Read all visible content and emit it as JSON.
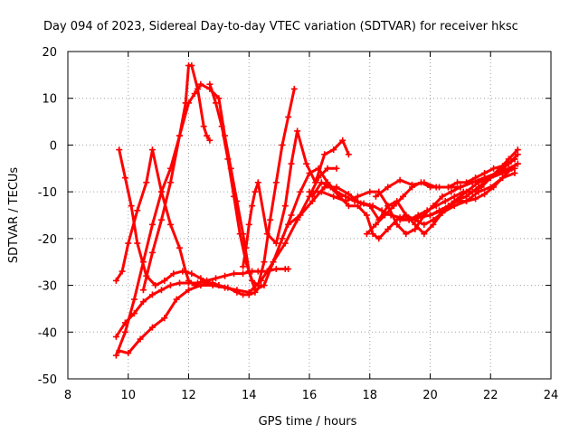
{
  "chart_data": {
    "type": "scatter",
    "title": "Day 094 of 2023, Sidereal Day-to-day VTEC variation (SDTVAR) for receiver hksc",
    "xlabel": "GPS time / hours",
    "ylabel": "SDTVAR / TECUs",
    "xlim": [
      8,
      24
    ],
    "ylim": [
      -50,
      20
    ],
    "xticks": [
      8,
      10,
      12,
      14,
      16,
      18,
      20,
      22,
      24
    ],
    "yticks": [
      -50,
      -40,
      -30,
      -20,
      -10,
      0,
      10,
      20
    ],
    "grid": true,
    "legend": "none",
    "marker": "plus",
    "color": "#ff0000",
    "series": [
      {
        "x": [
          9.6,
          9.8,
          10.0,
          10.3,
          10.6,
          10.8,
          11.1,
          11.4,
          11.7,
          11.9,
          12.0,
          12.2,
          12.4,
          12.6,
          12.8,
          13.0
        ],
        "y": [
          -29,
          -27,
          -21,
          -14,
          -8,
          -1,
          -10,
          -17,
          -22,
          -27,
          -29,
          -30,
          -30,
          -29.5,
          -29.5,
          -30
        ]
      },
      {
        "x": [
          9.6,
          9.9,
          10.2,
          10.5,
          10.8,
          11.1,
          11.4,
          11.7,
          11.9,
          12.0,
          12.1,
          12.3,
          12.5,
          12.6,
          12.7
        ],
        "y": [
          -45,
          -40,
          -33,
          -25,
          -17,
          -10,
          -5,
          2,
          9,
          17,
          17,
          12,
          4,
          2,
          1
        ]
      },
      {
        "x": [
          9.7,
          9.9,
          10.1,
          10.3,
          10.6,
          10.9,
          11.2,
          11.5,
          11.8,
          12.1,
          12.4,
          12.7,
          13.0,
          13.3,
          13.6,
          13.8,
          14.0,
          14.2,
          14.4
        ],
        "y": [
          -1,
          -7,
          -13,
          -21,
          -28,
          -30,
          -29,
          -27.5,
          -27,
          -27.5,
          -28.5,
          -29.5,
          -30,
          -30.5,
          -31.5,
          -32,
          -32,
          -31.5,
          -30
        ]
      },
      {
        "x": [
          9.6,
          9.9,
          10.2,
          10.5,
          10.8,
          11.1,
          11.4,
          11.7,
          12.0,
          12.3,
          12.6,
          12.9,
          13.2,
          13.5,
          13.8,
          14.1,
          14.3,
          14.6,
          14.9,
          15.2,
          15.3
        ],
        "y": [
          -41,
          -38,
          -36,
          -33.5,
          -32,
          -31,
          -30,
          -29.5,
          -29.5,
          -29.5,
          -29,
          -28.5,
          -28,
          -27.5,
          -27.5,
          -27,
          -27,
          -27,
          -26.5,
          -26.5,
          -26.5
        ]
      },
      {
        "x": [
          9.7,
          10.0,
          10.4,
          10.8,
          11.2,
          11.6,
          12.0,
          12.4,
          12.8,
          13.2,
          13.6,
          14.0,
          14.4,
          14.8,
          15.2,
          15.6,
          16.0,
          16.3,
          16.6,
          16.9
        ],
        "y": [
          -44,
          -44.5,
          -41.5,
          -39,
          -37,
          -33,
          -31,
          -30,
          -30,
          -30.5,
          -31,
          -31.5,
          -29,
          -25,
          -21,
          -16,
          -11,
          -7,
          -5,
          -5
        ]
      },
      {
        "x": [
          10.5,
          10.8,
          11.1,
          11.4,
          11.7,
          12.0,
          12.2,
          12.4,
          12.7,
          13.0,
          13.2,
          13.4,
          13.6,
          13.8,
          14.0,
          14.2
        ],
        "y": [
          -31,
          -23,
          -16,
          -8,
          2,
          9,
          11,
          13,
          12,
          10,
          2,
          -5,
          -12,
          -19,
          -27,
          -31
        ]
      },
      {
        "x": [
          12.7,
          12.9,
          13.1,
          13.3,
          13.5,
          13.7,
          13.9,
          14.1,
          14.3,
          14.5,
          14.7,
          14.9,
          15.1,
          15.3,
          15.5
        ],
        "y": [
          13,
          9,
          4,
          -3,
          -11,
          -19,
          -25,
          -29,
          -30,
          -25,
          -16,
          -8,
          0,
          6,
          12
        ]
      },
      {
        "x": [
          13.8,
          13.9,
          14.0,
          14.1,
          14.2,
          14.3,
          14.6,
          14.9,
          15.2,
          15.4,
          15.6,
          15.9,
          16.2,
          16.5,
          16.8,
          17.1,
          17.3
        ],
        "y": [
          -26,
          -22,
          -17,
          -13,
          -10,
          -8,
          -19,
          -21,
          -13,
          -4,
          3,
          -4,
          -8,
          -2,
          -1,
          1,
          -2
        ]
      },
      {
        "x": [
          14.0,
          14.2,
          14.5,
          14.8,
          15.1,
          15.4,
          15.7,
          16.0,
          16.3,
          16.6,
          16.9,
          17.2,
          17.5,
          17.8,
          18.1,
          18.4,
          18.7,
          19.0,
          19.3,
          19.6,
          20.0,
          20.4,
          20.8,
          21.2,
          21.6,
          22.0,
          22.4,
          22.8
        ],
        "y": [
          -27,
          -31,
          -30,
          -25,
          -20,
          -15,
          -10,
          -6,
          -5,
          -8,
          -10,
          -11,
          -12,
          -12.5,
          -13,
          -14,
          -15,
          -15.5,
          -16,
          -15.5,
          -15,
          -14,
          -12,
          -10,
          -8,
          -7,
          -6,
          -5
        ]
      },
      {
        "x": [
          15.3,
          15.7,
          16.1,
          16.5,
          16.9,
          17.3,
          17.7,
          18.0,
          18.3,
          18.6,
          18.9,
          19.2,
          19.5,
          19.8,
          20.1,
          20.4,
          20.8,
          21.2,
          21.6,
          22.0,
          22.4,
          22.8
        ],
        "y": [
          -17,
          -15,
          -12,
          -9,
          -9,
          -10.5,
          -12.5,
          -13,
          -16,
          -13,
          -12,
          -15,
          -16,
          -17,
          -16,
          -14.5,
          -13,
          -12,
          -10,
          -9,
          -7,
          -6
        ]
      },
      {
        "x": [
          16.0,
          16.4,
          16.8,
          17.2,
          17.6,
          18.0,
          18.3,
          18.6,
          18.9,
          19.2,
          19.5,
          19.8,
          20.1,
          20.4,
          20.7,
          21.0,
          21.4,
          21.8,
          22.2,
          22.6,
          22.9
        ],
        "y": [
          -10,
          -10,
          -11,
          -12,
          -11,
          -10,
          -10,
          -13,
          -17,
          -19,
          -18,
          -15,
          -13,
          -11,
          -10,
          -9,
          -8,
          -7,
          -6,
          -5,
          -4
        ]
      },
      {
        "x": [
          16.1,
          16.4,
          16.7,
          17.0,
          17.3,
          17.6,
          17.9,
          18.1,
          18.3,
          18.6,
          18.9,
          19.2,
          19.5,
          19.8,
          20.1,
          20.4,
          20.8,
          21.2,
          21.6,
          22.0,
          22.4,
          22.8
        ],
        "y": [
          -11,
          -8,
          -9,
          -11,
          -13,
          -13,
          -15,
          -19,
          -20,
          -18,
          -16,
          -15,
          -17,
          -19,
          -17,
          -14.5,
          -12,
          -11,
          -9,
          -7,
          -5,
          -3
        ]
      },
      {
        "x": [
          17.9,
          18.2,
          18.5,
          18.8,
          19.1,
          19.4,
          19.7,
          20.0,
          20.3,
          20.6,
          20.9,
          21.2,
          21.5,
          21.8,
          22.1,
          22.4,
          22.8
        ],
        "y": [
          -19,
          -17,
          -15,
          -13,
          -11,
          -9,
          -8,
          -9,
          -9,
          -9,
          -8,
          -8,
          -7,
          -6,
          -5,
          -4.5,
          -3
        ]
      },
      {
        "x": [
          18.2,
          18.6,
          19.0,
          19.4,
          19.8,
          20.2,
          20.6,
          21.0,
          21.4,
          21.8,
          22.2,
          22.6,
          22.9
        ],
        "y": [
          -11,
          -9,
          -7.5,
          -8.5,
          -8,
          -9,
          -9,
          -9,
          -8,
          -7,
          -6,
          -4,
          -2
        ]
      },
      {
        "x": [
          19.0,
          19.3,
          19.6,
          19.9,
          20.2,
          20.5,
          20.8,
          21.1,
          21.4,
          21.7,
          22.0,
          22.3,
          22.6,
          22.9
        ],
        "y": [
          -16,
          -16,
          -15,
          -14,
          -13,
          -12,
          -11,
          -10,
          -10,
          -9,
          -7,
          -5,
          -3,
          -1
        ]
      },
      {
        "x": [
          20.0,
          20.3,
          20.6,
          20.9,
          21.2,
          21.5,
          21.8,
          22.1,
          22.4,
          22.7,
          22.9
        ],
        "y": [
          -15,
          -14,
          -13,
          -12,
          -12,
          -11.5,
          -10.5,
          -9,
          -7,
          -5,
          -4
        ]
      }
    ]
  }
}
